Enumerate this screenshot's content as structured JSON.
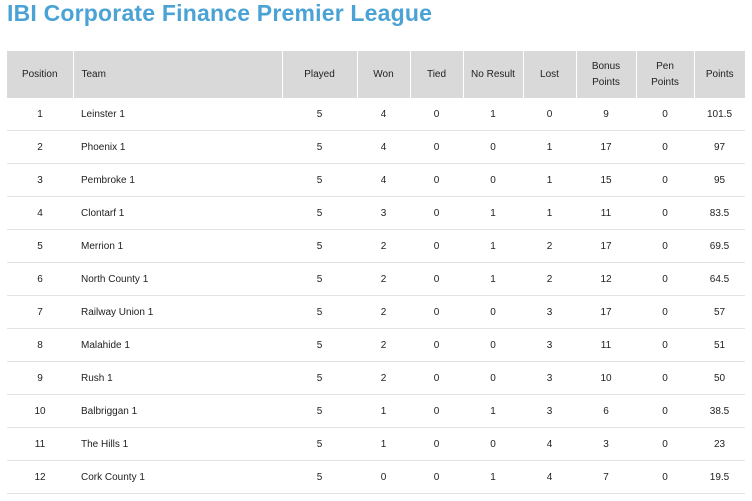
{
  "title": "IBI Corporate Finance Premier League",
  "columns": {
    "position": "Position",
    "team": "Team",
    "played": "Played",
    "won": "Won",
    "tied": "Tied",
    "no_result": "No Result",
    "lost": "Lost",
    "bonus_line1": "Bonus",
    "bonus_line2": "Points",
    "pen_line1": "Pen",
    "pen_line2": "Points",
    "points": "Points"
  },
  "colors": {
    "title": "#4aa3d4",
    "header_bg": "#d9d9d9",
    "row_border": "#e3e3e3"
  },
  "rows": [
    {
      "position": "1",
      "team": "Leinster 1",
      "played": "5",
      "won": "4",
      "tied": "0",
      "no_result": "1",
      "lost": "0",
      "bonus": "9",
      "pen": "0",
      "points": "101.5"
    },
    {
      "position": "2",
      "team": "Phoenix 1",
      "played": "5",
      "won": "4",
      "tied": "0",
      "no_result": "0",
      "lost": "1",
      "bonus": "17",
      "pen": "0",
      "points": "97"
    },
    {
      "position": "3",
      "team": "Pembroke 1",
      "played": "5",
      "won": "4",
      "tied": "0",
      "no_result": "0",
      "lost": "1",
      "bonus": "15",
      "pen": "0",
      "points": "95"
    },
    {
      "position": "4",
      "team": "Clontarf 1",
      "played": "5",
      "won": "3",
      "tied": "0",
      "no_result": "1",
      "lost": "1",
      "bonus": "11",
      "pen": "0",
      "points": "83.5"
    },
    {
      "position": "5",
      "team": "Merrion 1",
      "played": "5",
      "won": "2",
      "tied": "0",
      "no_result": "1",
      "lost": "2",
      "bonus": "17",
      "pen": "0",
      "points": "69.5"
    },
    {
      "position": "6",
      "team": "North County 1",
      "played": "5",
      "won": "2",
      "tied": "0",
      "no_result": "1",
      "lost": "2",
      "bonus": "12",
      "pen": "0",
      "points": "64.5"
    },
    {
      "position": "7",
      "team": "Railway Union 1",
      "played": "5",
      "won": "2",
      "tied": "0",
      "no_result": "0",
      "lost": "3",
      "bonus": "17",
      "pen": "0",
      "points": "57"
    },
    {
      "position": "8",
      "team": "Malahide 1",
      "played": "5",
      "won": "2",
      "tied": "0",
      "no_result": "0",
      "lost": "3",
      "bonus": "11",
      "pen": "0",
      "points": "51"
    },
    {
      "position": "9",
      "team": "Rush 1",
      "played": "5",
      "won": "2",
      "tied": "0",
      "no_result": "0",
      "lost": "3",
      "bonus": "10",
      "pen": "0",
      "points": "50"
    },
    {
      "position": "10",
      "team": "Balbriggan 1",
      "played": "5",
      "won": "1",
      "tied": "0",
      "no_result": "1",
      "lost": "3",
      "bonus": "6",
      "pen": "0",
      "points": "38.5"
    },
    {
      "position": "11",
      "team": "The Hills 1",
      "played": "5",
      "won": "1",
      "tied": "0",
      "no_result": "0",
      "lost": "4",
      "bonus": "3",
      "pen": "0",
      "points": "23"
    },
    {
      "position": "12",
      "team": "Cork County 1",
      "played": "5",
      "won": "0",
      "tied": "0",
      "no_result": "1",
      "lost": "4",
      "bonus": "7",
      "pen": "0",
      "points": "19.5"
    }
  ]
}
